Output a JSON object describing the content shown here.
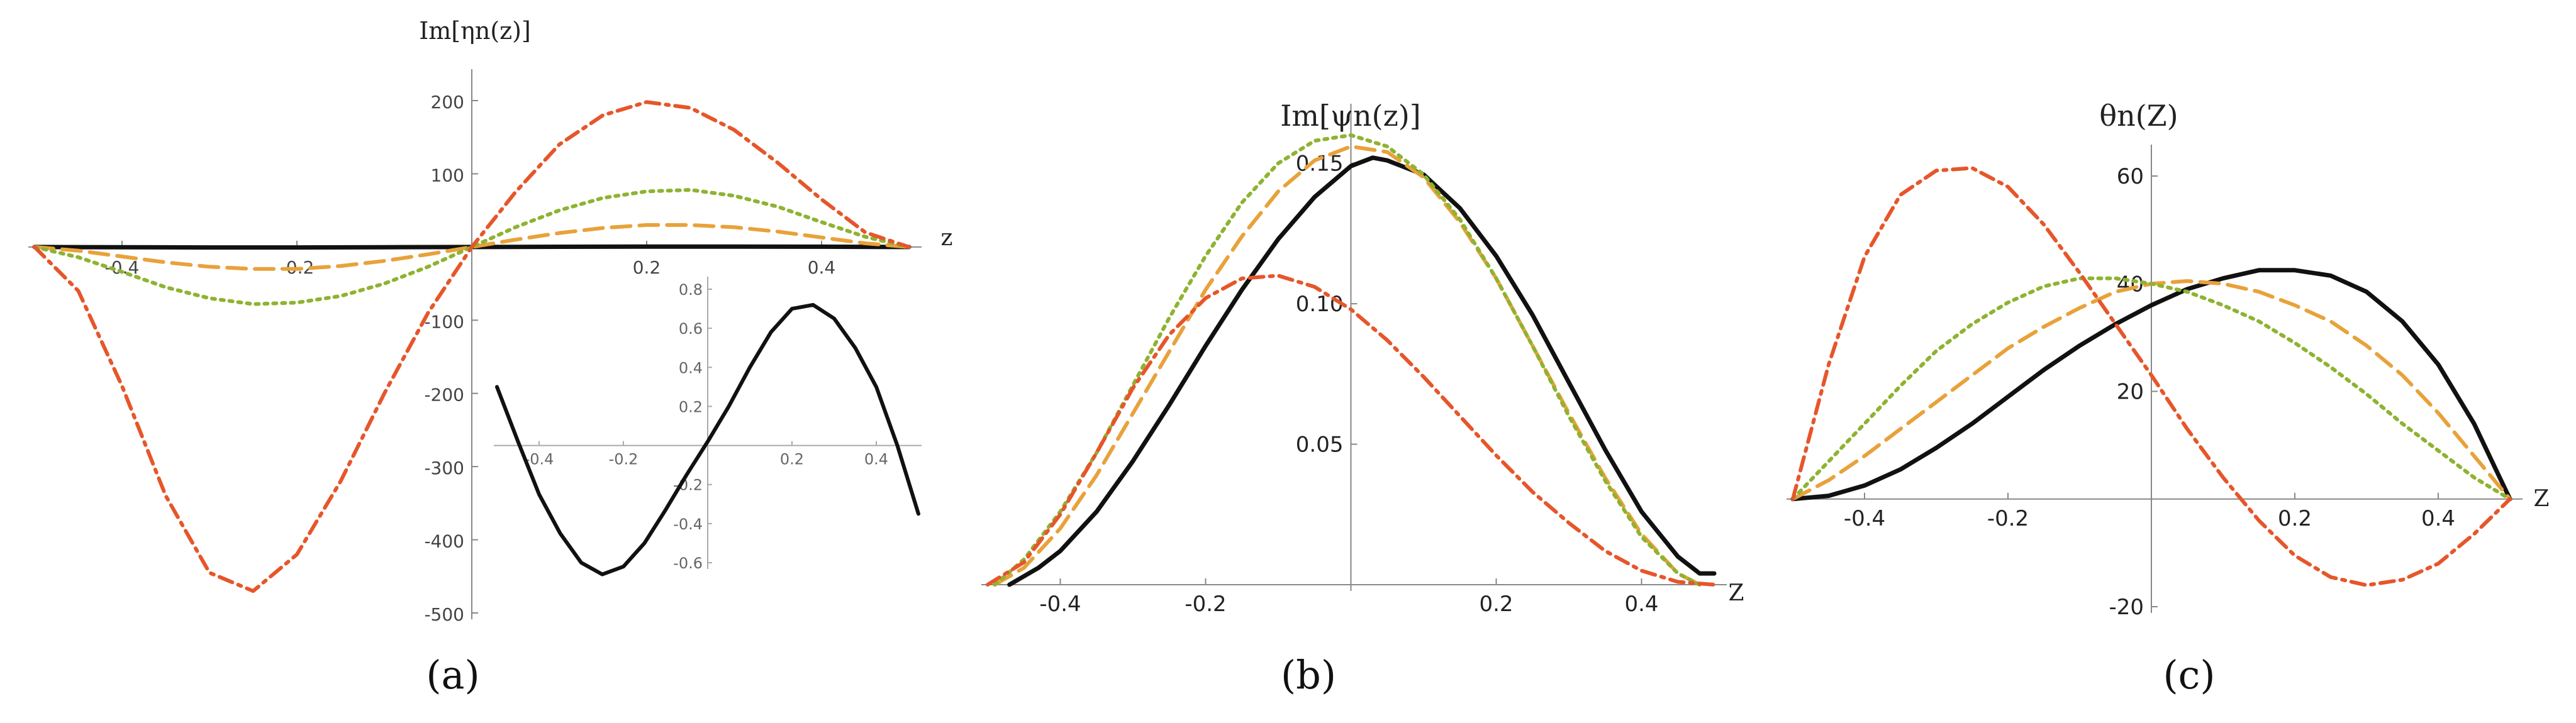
{
  "chart_data": [
    {
      "type": "line",
      "panel": "a",
      "title": "",
      "ylabel": "Im[ηn(z)]",
      "xlabel": "z",
      "caption": "(a)",
      "xlim": [
        -0.5,
        0.5
      ],
      "ylim": [
        -500,
        200
      ],
      "xticks": [
        {
          "v": -0.4,
          "t": "-0.4"
        },
        {
          "v": -0.2,
          "t": "-0.2"
        },
        {
          "v": 0.2,
          "t": "0.2"
        },
        {
          "v": 0.4,
          "t": "0.4"
        }
      ],
      "yticks": [
        {
          "v": 200,
          "t": "200"
        },
        {
          "v": 100,
          "t": "100"
        },
        {
          "v": -100,
          "t": "-100"
        },
        {
          "v": -200,
          "t": "-200"
        },
        {
          "v": -300,
          "t": "-300"
        },
        {
          "v": -400,
          "t": "-400"
        },
        {
          "v": -500,
          "t": "-500"
        }
      ],
      "series": [
        {
          "name": "black",
          "color": "#111111",
          "style": "solid",
          "x": [
            -0.5,
            -0.4,
            -0.3,
            -0.2,
            -0.1,
            0,
            0.1,
            0.2,
            0.3,
            0.4,
            0.5
          ],
          "y": [
            0,
            -0.4,
            -0.6,
            -0.6,
            -0.3,
            0,
            0.3,
            0.6,
            0.6,
            0.4,
            0
          ]
        },
        {
          "name": "orange",
          "color": "#e8a23a",
          "style": "dashed",
          "x": [
            -0.5,
            -0.45,
            -0.4,
            -0.35,
            -0.3,
            -0.25,
            -0.2,
            -0.15,
            -0.1,
            -0.05,
            0,
            0.05,
            0.1,
            0.15,
            0.2,
            0.25,
            0.3,
            0.35,
            0.4,
            0.45,
            0.5
          ],
          "y": [
            0,
            -5,
            -13,
            -21,
            -27,
            -30,
            -30,
            -26,
            -19,
            -10,
            0,
            10,
            19,
            26,
            30,
            30,
            27,
            21,
            13,
            5,
            0
          ]
        },
        {
          "name": "green",
          "color": "#8eb331",
          "style": "dotted",
          "x": [
            -0.5,
            -0.45,
            -0.4,
            -0.35,
            -0.3,
            -0.25,
            -0.2,
            -0.15,
            -0.1,
            -0.05,
            0,
            0.05,
            0.1,
            0.15,
            0.2,
            0.25,
            0.3,
            0.35,
            0.4,
            0.45,
            0.5
          ],
          "y": [
            0,
            -14,
            -34,
            -55,
            -70,
            -78,
            -76,
            -67,
            -50,
            -27,
            0,
            27,
            50,
            67,
            76,
            78,
            70,
            55,
            34,
            14,
            0
          ]
        },
        {
          "name": "red",
          "color": "#e6562a",
          "style": "dashdot",
          "x": [
            -0.5,
            -0.45,
            -0.4,
            -0.35,
            -0.3,
            -0.25,
            -0.2,
            -0.15,
            -0.1,
            -0.05,
            0,
            0.05,
            0.1,
            0.15,
            0.2,
            0.25,
            0.3,
            0.35,
            0.4,
            0.45,
            0.5
          ],
          "y": [
            0,
            -60,
            -190,
            -340,
            -445,
            -470,
            -420,
            -320,
            -200,
            -90,
            0,
            75,
            140,
            180,
            198,
            190,
            160,
            115,
            65,
            20,
            0
          ]
        }
      ],
      "inset": {
        "xlim": [
          -0.5,
          0.5
        ],
        "ylim": [
          -0.6,
          0.8
        ],
        "xticks": [
          {
            "v": -0.4,
            "t": "-0.4"
          },
          {
            "v": -0.2,
            "t": "-0.2"
          },
          {
            "v": 0.2,
            "t": "0.2"
          },
          {
            "v": 0.4,
            "t": "0.4"
          }
        ],
        "yticks": [
          {
            "v": 0.8,
            "t": "0.8"
          },
          {
            "v": 0.6,
            "t": "0.6"
          },
          {
            "v": 0.4,
            "t": "0.4"
          },
          {
            "v": 0.2,
            "t": "0.2"
          },
          {
            "v": -0.2,
            "t": "-0.2"
          },
          {
            "v": -0.4,
            "t": "-0.4"
          },
          {
            "v": -0.6,
            "t": "-0.6"
          }
        ],
        "series": [
          {
            "name": "black-zoom",
            "color": "#111111",
            "style": "solid",
            "x": [
              -0.5,
              -0.45,
              -0.4,
              -0.35,
              -0.3,
              -0.25,
              -0.2,
              -0.15,
              -0.1,
              -0.05,
              0,
              0.05,
              0.1,
              0.15,
              0.2,
              0.25,
              0.3,
              0.35,
              0.4,
              0.45,
              0.5
            ],
            "y": [
              0.3,
              0.02,
              -0.25,
              -0.45,
              -0.6,
              -0.66,
              -0.62,
              -0.5,
              -0.33,
              -0.15,
              0.02,
              0.2,
              0.4,
              0.58,
              0.7,
              0.72,
              0.65,
              0.5,
              0.3,
              0.0,
              -0.35
            ]
          }
        ]
      }
    },
    {
      "type": "line",
      "panel": "b",
      "title": "",
      "ylabel": "Im[ψn(z)]",
      "xlabel": "Z",
      "caption": "(b)",
      "xlim": [
        -0.5,
        0.5
      ],
      "ylim": [
        0,
        0.16
      ],
      "xticks": [
        {
          "v": -0.4,
          "t": "-0.4"
        },
        {
          "v": -0.2,
          "t": "-0.2"
        },
        {
          "v": 0.2,
          "t": "0.2"
        },
        {
          "v": 0.4,
          "t": "0.4"
        }
      ],
      "yticks": [
        {
          "v": 0.05,
          "t": "0.05"
        },
        {
          "v": 0.1,
          "t": "0.10"
        },
        {
          "v": 0.15,
          "t": "0.15"
        }
      ],
      "series": [
        {
          "name": "black",
          "color": "#111111",
          "style": "solid",
          "x": [
            -0.47,
            -0.43,
            -0.4,
            -0.35,
            -0.3,
            -0.25,
            -0.2,
            -0.15,
            -0.1,
            -0.05,
            0,
            0.03,
            0.05,
            0.1,
            0.15,
            0.2,
            0.25,
            0.3,
            0.35,
            0.4,
            0.45,
            0.48,
            0.5
          ],
          "y": [
            0,
            0.006,
            0.012,
            0.026,
            0.044,
            0.064,
            0.085,
            0.105,
            0.123,
            0.138,
            0.149,
            0.152,
            0.151,
            0.146,
            0.134,
            0.117,
            0.096,
            0.072,
            0.048,
            0.026,
            0.01,
            0.004,
            0.004
          ]
        },
        {
          "name": "orange",
          "color": "#e8a23a",
          "style": "dashed",
          "x": [
            -0.49,
            -0.45,
            -0.4,
            -0.35,
            -0.3,
            -0.25,
            -0.2,
            -0.15,
            -0.1,
            -0.05,
            0,
            0.05,
            0.1,
            0.15,
            0.2,
            0.25,
            0.3,
            0.35,
            0.4,
            0.45,
            0.48
          ],
          "y": [
            0,
            0.006,
            0.02,
            0.039,
            0.061,
            0.083,
            0.105,
            0.124,
            0.14,
            0.151,
            0.156,
            0.154,
            0.145,
            0.129,
            0.109,
            0.085,
            0.061,
            0.038,
            0.018,
            0.004,
            0
          ]
        },
        {
          "name": "green",
          "color": "#8eb331",
          "style": "dotted",
          "x": [
            -0.49,
            -0.45,
            -0.4,
            -0.35,
            -0.3,
            -0.25,
            -0.2,
            -0.15,
            -0.1,
            -0.05,
            0,
            0.05,
            0.1,
            0.15,
            0.2,
            0.25,
            0.3,
            0.35,
            0.4,
            0.45,
            0.48
          ],
          "y": [
            0,
            0.009,
            0.026,
            0.047,
            0.071,
            0.095,
            0.117,
            0.136,
            0.15,
            0.158,
            0.16,
            0.156,
            0.146,
            0.13,
            0.109,
            0.085,
            0.06,
            0.037,
            0.017,
            0.004,
            0
          ]
        },
        {
          "name": "red",
          "color": "#e6562a",
          "style": "dashdot",
          "x": [
            -0.5,
            -0.45,
            -0.4,
            -0.35,
            -0.3,
            -0.25,
            -0.2,
            -0.15,
            -0.1,
            -0.05,
            0,
            0.05,
            0.1,
            0.15,
            0.2,
            0.25,
            0.3,
            0.35,
            0.4,
            0.45,
            0.5
          ],
          "y": [
            0,
            0.008,
            0.025,
            0.047,
            0.07,
            0.089,
            0.102,
            0.109,
            0.11,
            0.106,
            0.098,
            0.087,
            0.074,
            0.06,
            0.046,
            0.033,
            0.022,
            0.012,
            0.005,
            0.001,
            0
          ]
        }
      ]
    },
    {
      "type": "line",
      "panel": "c",
      "title": "",
      "ylabel": "θn(Z)",
      "xlabel": "Z",
      "caption": "(c)",
      "xlim": [
        -0.5,
        0.5
      ],
      "ylim": [
        -20,
        60
      ],
      "xticks": [
        {
          "v": -0.4,
          "t": "-0.4"
        },
        {
          "v": -0.2,
          "t": "-0.2"
        },
        {
          "v": 0.2,
          "t": "0.2"
        },
        {
          "v": 0.4,
          "t": "0.4"
        }
      ],
      "yticks": [
        {
          "v": 60,
          "t": "60"
        },
        {
          "v": 40,
          "t": "40"
        },
        {
          "v": 20,
          "t": "20"
        },
        {
          "v": -20,
          "t": "-20"
        }
      ],
      "series": [
        {
          "name": "black",
          "color": "#111111",
          "style": "solid",
          "x": [
            -0.5,
            -0.45,
            -0.4,
            -0.35,
            -0.3,
            -0.25,
            -0.2,
            -0.15,
            -0.1,
            -0.05,
            0,
            0.05,
            0.1,
            0.15,
            0.2,
            0.25,
            0.3,
            0.35,
            0.4,
            0.45,
            0.5
          ],
          "y": [
            0,
            0.6,
            2.5,
            5.5,
            9.5,
            14,
            19,
            24,
            28.5,
            32.5,
            36,
            39,
            41,
            42.5,
            42.5,
            41.5,
            38.5,
            33,
            25,
            14,
            0
          ]
        },
        {
          "name": "orange",
          "color": "#e8a23a",
          "style": "dashed",
          "x": [
            -0.5,
            -0.45,
            -0.4,
            -0.35,
            -0.3,
            -0.25,
            -0.2,
            -0.15,
            -0.1,
            -0.05,
            0,
            0.05,
            0.1,
            0.15,
            0.2,
            0.25,
            0.3,
            0.35,
            0.4,
            0.45,
            0.5
          ],
          "y": [
            0,
            3.5,
            8,
            13,
            18,
            23,
            28,
            32,
            35.5,
            38.5,
            40,
            40.5,
            40,
            38.5,
            36,
            33,
            28.5,
            23,
            16,
            8,
            0
          ]
        },
        {
          "name": "green",
          "color": "#8eb331",
          "style": "dotted",
          "x": [
            -0.5,
            -0.45,
            -0.4,
            -0.35,
            -0.3,
            -0.25,
            -0.2,
            -0.15,
            -0.1,
            -0.05,
            0,
            0.05,
            0.1,
            0.15,
            0.2,
            0.25,
            0.3,
            0.35,
            0.4,
            0.45,
            0.5
          ],
          "y": [
            0,
            7,
            14,
            21,
            27.5,
            32.5,
            36.5,
            39.5,
            41,
            41,
            40,
            38.5,
            36,
            33,
            29,
            24.5,
            19.5,
            14,
            9,
            4,
            0
          ]
        },
        {
          "name": "red",
          "color": "#e6562a",
          "style": "dashdot",
          "x": [
            -0.5,
            -0.45,
            -0.4,
            -0.35,
            -0.3,
            -0.25,
            -0.2,
            -0.15,
            -0.1,
            -0.05,
            0,
            0.05,
            0.1,
            0.15,
            0.2,
            0.25,
            0.3,
            0.35,
            0.4,
            0.45,
            0.5
          ],
          "y": [
            0,
            25,
            45,
            56.5,
            61,
            61.5,
            58,
            51,
            42,
            32.5,
            23,
            13,
            4,
            -4,
            -10.5,
            -14.5,
            -16,
            -15,
            -12,
            -6.5,
            0
          ]
        }
      ]
    }
  ]
}
